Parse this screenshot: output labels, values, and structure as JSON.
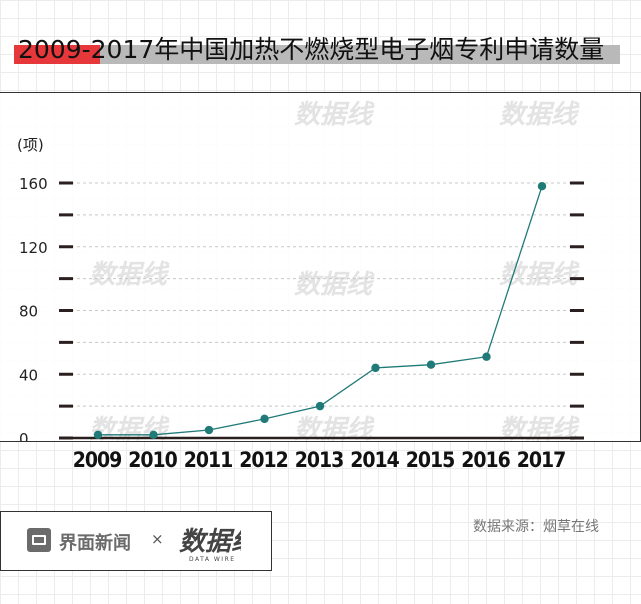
{
  "title": "2009-2017年中国加热不燃烧型电子烟专利申请数量",
  "footer": {
    "brand": "界面新闻",
    "times": "×",
    "partner_logo_text": "数据线",
    "partner_logo_sub": "DATA WIRE",
    "source": "数据来源：烟草在线"
  },
  "colors": {
    "line": "#1f7a78",
    "title_red": "#e6373a",
    "title_grey": "#b9b9b9",
    "tick": "#2b1f1f"
  },
  "chart_data": {
    "type": "line",
    "title": "2009-2017年中国加热不燃烧型电子烟专利申请数量",
    "ylabel": "(项)",
    "xlabel": "",
    "x": [
      "2009",
      "2010",
      "2011",
      "2012",
      "2013",
      "2014",
      "2015",
      "2016",
      "2017"
    ],
    "values": [
      2,
      2,
      5,
      12,
      20,
      44,
      46,
      51,
      158
    ],
    "ylim": [
      0,
      160
    ],
    "yticks": [
      0,
      40,
      80,
      120,
      160
    ],
    "grid": true
  }
}
